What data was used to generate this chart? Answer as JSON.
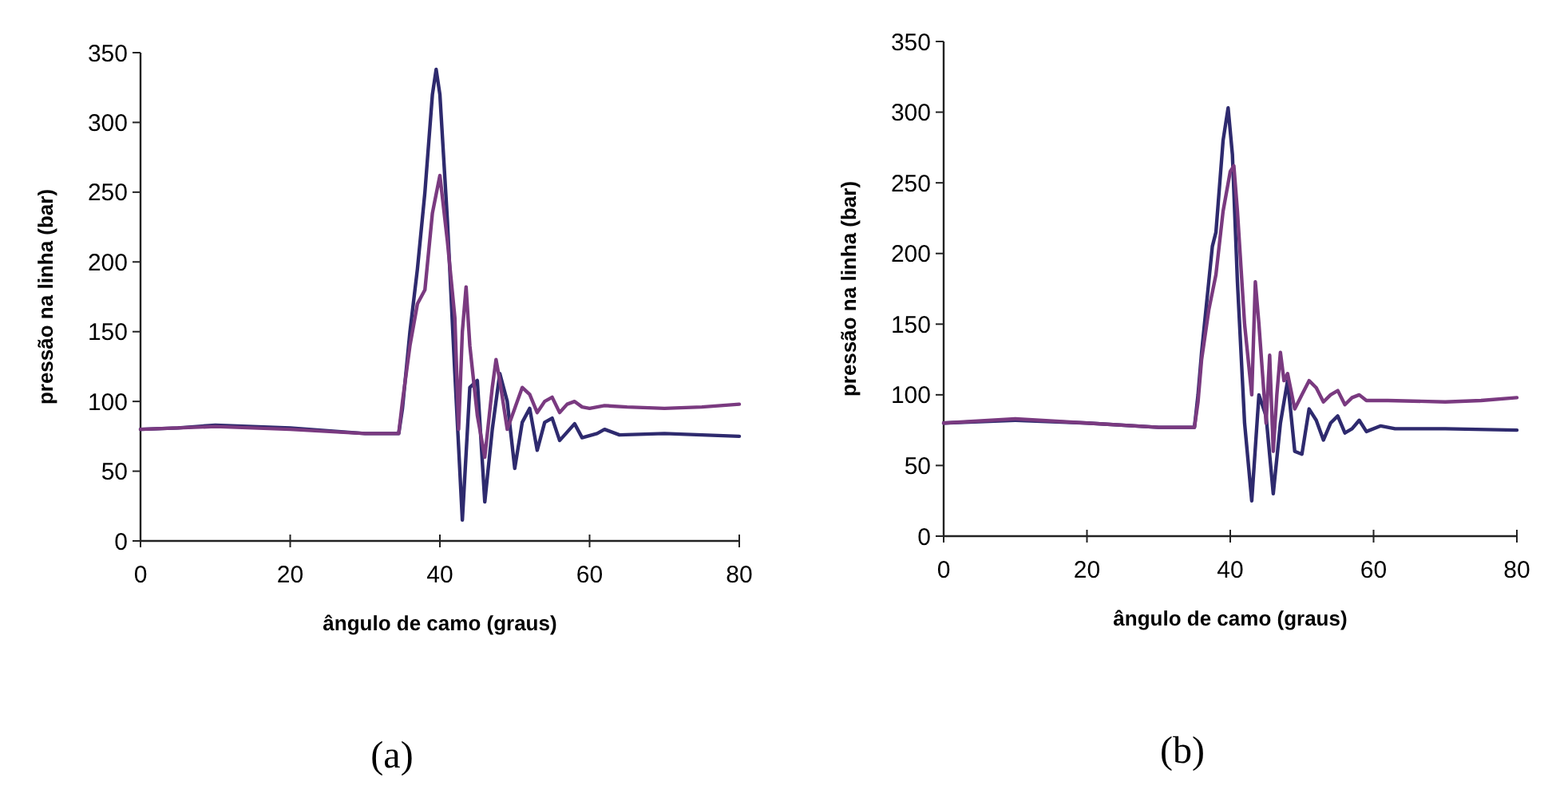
{
  "chart_data": [
    {
      "type": "line",
      "xlabel": "ângulo de camo (graus)",
      "ylabel": "pressão na linha (bar)",
      "annotations": [
        "(a)"
      ],
      "xlim": [
        0,
        80
      ],
      "xticks": [
        0,
        20,
        40,
        60,
        80
      ],
      "ylim": [
        0,
        350
      ],
      "yticks": [
        0,
        50,
        100,
        150,
        200,
        250,
        300,
        350
      ],
      "grid": false,
      "marker": "none",
      "line_style": "solid",
      "series": [
        {
          "color": "#2e2a6e",
          "x": [
            0,
            5,
            10,
            15,
            20,
            25,
            30,
            34.5,
            35,
            36,
            37,
            38,
            39,
            39.5,
            40,
            41,
            42,
            43,
            44,
            45,
            46,
            47,
            48,
            49,
            50,
            51,
            52,
            53,
            54,
            55,
            56,
            57,
            58,
            59,
            61,
            62,
            64,
            70,
            75,
            80
          ],
          "values": [
            80,
            81,
            83,
            82,
            81,
            79,
            77,
            77,
            95,
            150,
            195,
            250,
            320,
            338,
            320,
            230,
            120,
            15,
            110,
            115,
            28,
            80,
            120,
            100,
            52,
            85,
            95,
            65,
            85,
            88,
            72,
            78,
            84,
            74,
            77,
            80,
            76,
            77,
            76,
            75
          ]
        },
        {
          "color": "#7a3a80",
          "x": [
            0,
            10,
            20,
            30,
            34.5,
            35,
            36,
            37,
            38,
            39,
            40,
            41,
            42,
            42.5,
            43,
            43.5,
            44,
            45,
            46,
            47,
            47.5,
            48,
            49,
            50,
            51,
            52,
            53,
            54,
            55,
            56,
            57,
            58,
            59,
            60,
            62,
            65,
            70,
            75,
            80
          ],
          "values": [
            80,
            82,
            80,
            77,
            77,
            100,
            140,
            170,
            180,
            235,
            262,
            215,
            160,
            80,
            150,
            182,
            140,
            90,
            60,
            110,
            130,
            115,
            80,
            95,
            110,
            105,
            92,
            100,
            103,
            92,
            98,
            100,
            96,
            95,
            97,
            96,
            95,
            96,
            98
          ]
        }
      ]
    },
    {
      "type": "line",
      "xlabel": "ângulo de camo (graus)",
      "ylabel": "pressão na linha (bar)",
      "annotations": [
        "(b)"
      ],
      "xlim": [
        0,
        80
      ],
      "xticks": [
        0,
        20,
        40,
        60,
        80
      ],
      "ylim": [
        0,
        350
      ],
      "yticks": [
        0,
        50,
        100,
        150,
        200,
        250,
        300,
        350
      ],
      "grid": false,
      "marker": "none",
      "line_style": "solid",
      "series": [
        {
          "color": "#2e2a6e",
          "x": [
            0,
            10,
            20,
            30,
            35,
            35.5,
            36,
            37,
            37.5,
            38,
            39,
            39.7,
            40.3,
            41,
            42,
            43,
            44,
            45,
            46,
            47,
            48,
            49,
            50,
            51,
            52,
            53,
            54,
            55,
            56,
            57,
            58,
            59,
            61,
            63,
            70,
            80
          ],
          "values": [
            80,
            82,
            80,
            77,
            77,
            100,
            130,
            180,
            205,
            215,
            280,
            303,
            270,
            180,
            80,
            25,
            100,
            85,
            30,
            80,
            110,
            60,
            58,
            90,
            82,
            68,
            80,
            85,
            73,
            76,
            82,
            74,
            78,
            76,
            76,
            75
          ]
        },
        {
          "color": "#7a3a80",
          "x": [
            0,
            10,
            20,
            30,
            35,
            35.5,
            36,
            37,
            38,
            39,
            40,
            40.5,
            41,
            42,
            43,
            43.5,
            44,
            45,
            45.5,
            46,
            46.5,
            47,
            47.5,
            48,
            49,
            50,
            51,
            52,
            53,
            54,
            55,
            56,
            57,
            58,
            59,
            62,
            70,
            75,
            80
          ],
          "values": [
            80,
            83,
            80,
            77,
            77,
            95,
            125,
            160,
            185,
            230,
            258,
            262,
            230,
            150,
            100,
            180,
            150,
            80,
            128,
            60,
            100,
            130,
            110,
            115,
            90,
            100,
            110,
            105,
            95,
            100,
            103,
            93,
            98,
            100,
            96,
            96,
            95,
            96,
            98
          ]
        }
      ]
    }
  ]
}
